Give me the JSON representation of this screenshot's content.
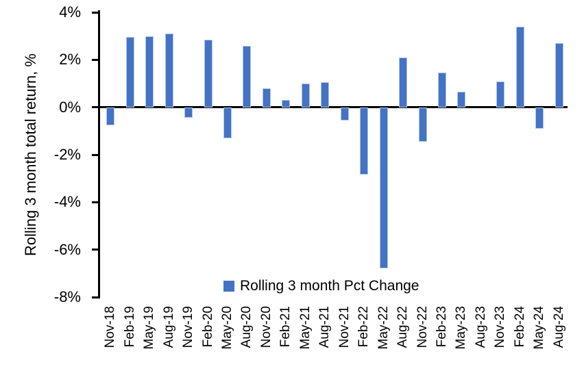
{
  "chart_data": {
    "type": "bar",
    "title": "",
    "ylabel": "Rolling 3 month total return, %",
    "series_name": "Rolling 3 month Pct Change",
    "categories": [
      "Nov-18",
      "Feb-19",
      "May-19",
      "Aug-19",
      "Nov-19",
      "Feb-20",
      "May-20",
      "Aug-20",
      "Nov-20",
      "Feb-21",
      "May-21",
      "Aug-21",
      "Nov-21",
      "Feb-22",
      "May-22",
      "Aug-22",
      "Nov-22",
      "Feb-23",
      "May-23",
      "Aug-23",
      "Nov-23",
      "Feb-24",
      "May-24",
      "Aug-24"
    ],
    "values": [
      -0.75,
      2.95,
      3.0,
      3.1,
      -0.45,
      2.85,
      -1.3,
      2.6,
      0.8,
      0.3,
      1.0,
      1.05,
      -0.55,
      -2.85,
      -6.8,
      2.1,
      -1.45,
      1.45,
      0.65,
      0.0,
      1.1,
      3.4,
      -0.9,
      2.7
    ],
    "unit": "%",
    "ylim": [
      -8,
      4
    ],
    "yticks": [
      4,
      2,
      0,
      -2,
      -4,
      -6,
      -8
    ],
    "ytick_labels": [
      "4%",
      "2%",
      "0%",
      "-2%",
      "-4%",
      "-6%",
      "-8%"
    ],
    "grid": false,
    "legend_position": "inside-bottom-center",
    "bar_color": "#4472C4",
    "bar_border_color": "#AEC6EA",
    "axis_color": "#000000",
    "background_color": "#FFFFFF"
  }
}
